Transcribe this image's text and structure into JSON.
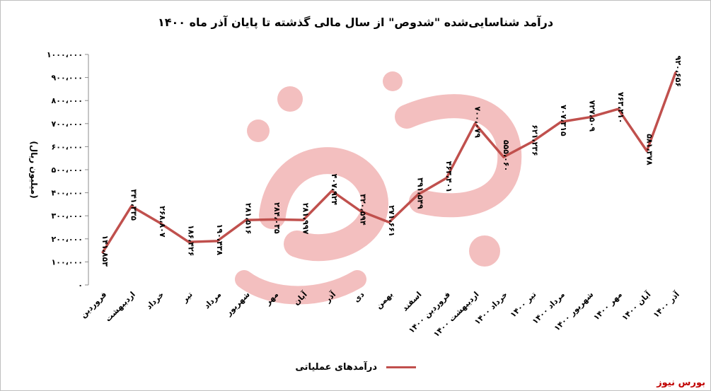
{
  "chart_data": {
    "type": "line",
    "title": "درآمد شناسایی‌شده \"شدوص\" از سال مالی گذشته تا پایان آذر ماه ۱۴۰۰",
    "ylabel": "(میلیون ریال)",
    "ylim": [
      0,
      1000000
    ],
    "y_ticks": [
      "۰",
      "۱۰۰،۰۰۰",
      "۲۰۰،۰۰۰",
      "۳۰۰،۰۰۰",
      "۴۰۰،۰۰۰",
      "۵۰۰،۰۰۰",
      "۶۰۰،۰۰۰",
      "۷۰۰،۰۰۰",
      "۸۰۰،۰۰۰",
      "۹۰۰،۰۰۰",
      "۱۰۰۰،۰۰۰"
    ],
    "categories": [
      "فروردین",
      "اردیبهشت",
      "خرداد",
      "تیر",
      "مرداد",
      "شهریور",
      "مهر",
      "آبان",
      "آذر",
      "دی",
      "بهمن",
      "اسفند",
      "فروردین ۱۴۰۰",
      "اردیبهشت ۱۴۰۰",
      "خرداد ۱۴۰۰",
      "تیر ۱۴۰۰",
      "مرداد ۱۴۰۰",
      "شهریور ۱۴۰۰",
      "مهر ۱۴۰۰",
      "آبان ۱۴۰۰",
      "آذر ۱۴۰۰"
    ],
    "series": [
      {
        "name": "درآمدهای عملیاتی",
        "color": "#c0504d",
        "values": [
          141853,
          341335,
          268807,
          186426,
          190438,
          281516,
          284035,
          281997,
          407924,
          320594,
          271661,
          391549,
          463401,
          700079,
          555060,
          621236,
          707315,
          727509,
          763210,
          581378,
          920656
        ],
        "labels": [
          "۱۴۱،۸۵۳",
          "۳۴۱،۳۳۵",
          "۲۶۸،۸۰۷",
          "۱۸۶،۴۲۶",
          "۱۹۰،۴۳۸",
          "۲۸۱،۵۱۶",
          "۲۸۴،۰۳۵",
          "۲۸۱،۹۹۷",
          "۴۰۷،۹۲۴",
          "۳۲۰،۵۹۴",
          "۲۷۱،۶۶۱",
          "۳۹۱،۵۴۹",
          "۴۶۳،۴۰۱",
          "۷۰۰،۰۷۹",
          "۵۵۵،۰۶۰",
          "۶۲۱،۲۳۶",
          "۷۰۷،۳۱۵",
          "۷۲۷،۵۰۹",
          "۷۶۳،۲۱۰",
          "۵۸۱،۳۷۸",
          "۹۲۰،۶۵۶"
        ]
      }
    ],
    "legend": "bottom-center",
    "grid": false
  },
  "legend_label": "درآمدهای عملیاتی",
  "brand": "بورس نیوز",
  "watermark_text": "بورس نیوز"
}
